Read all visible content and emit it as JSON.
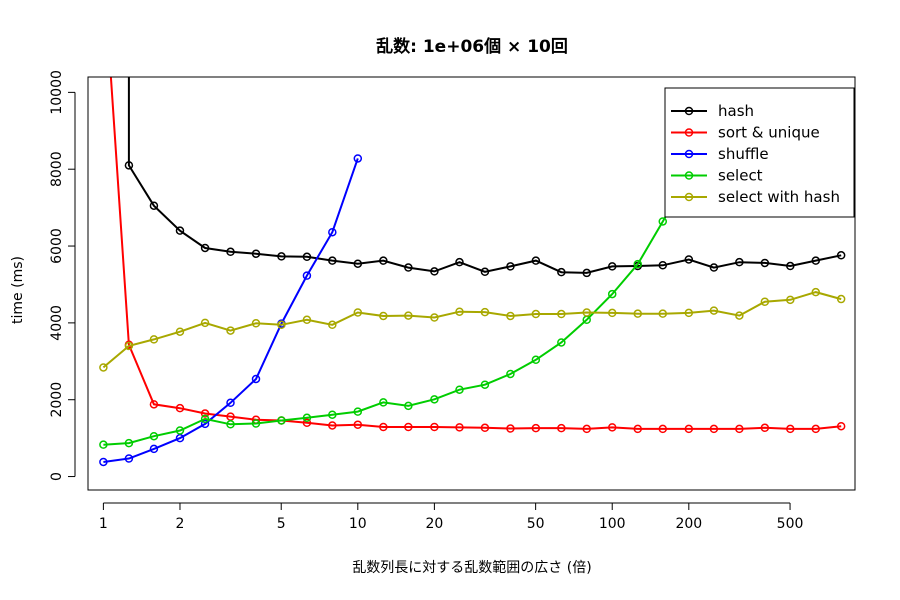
{
  "chart_data": {
    "type": "line",
    "title": "乱数: 1e+06個 × 10回",
    "xlabel": "乱数列長に対する乱数範囲の広さ (倍)",
    "ylabel": "time (ms)",
    "xscale": "log",
    "xlim": [
      0.87,
      900
    ],
    "ylim": [
      -350,
      10400
    ],
    "xticks": [
      1,
      2,
      5,
      10,
      20,
      50,
      100,
      200,
      500
    ],
    "xtick_labels": [
      "1",
      "2",
      "5",
      "10",
      "20",
      "50",
      "100",
      "200",
      "500"
    ],
    "yticks": [
      0,
      2000,
      4000,
      6000,
      8000,
      10000
    ],
    "ytick_labels": [
      "0",
      "2000",
      "4000",
      "6000",
      "8000",
      "10000"
    ],
    "grid": false,
    "legend_position": "top-right",
    "series": [
      {
        "name": "hash",
        "color": "#000000",
        "x": [
          1,
          1.26,
          1.58,
          2,
          2.51,
          3.16,
          3.98,
          5.01,
          6.31,
          7.94,
          10,
          12.6,
          15.8,
          20,
          25.1,
          31.6,
          39.8,
          50.1,
          63.1,
          79.4,
          100,
          126,
          158,
          200,
          251,
          316,
          398,
          501,
          631,
          794
        ],
        "y": [
          null,
          8100,
          7050,
          6400,
          5950,
          5850,
          5800,
          5730,
          5720,
          5620,
          5540,
          5620,
          5440,
          5340,
          5580,
          5330,
          5470,
          5620,
          5320,
          5300,
          5470,
          5480,
          5500,
          5650,
          5440,
          5580,
          5560,
          5480,
          5620,
          5760
        ],
        "start": {
          "x": 1.26,
          "y": 10400
        }
      },
      {
        "name": "sort & unique",
        "color": "#ff0000",
        "x": [
          1.26,
          1.58,
          2,
          2.51,
          3.16,
          3.98,
          5.01,
          6.31,
          7.94,
          10,
          12.6,
          15.8,
          20,
          25.1,
          31.6,
          39.8,
          50.1,
          63.1,
          79.4,
          100,
          126,
          158,
          200,
          251,
          316,
          398,
          501,
          631,
          794
        ],
        "y": [
          3430,
          1880,
          1780,
          1640,
          1560,
          1480,
          1460,
          1400,
          1330,
          1350,
          1290,
          1290,
          1290,
          1280,
          1270,
          1250,
          1260,
          1260,
          1240,
          1280,
          1240,
          1240,
          1240,
          1240,
          1240,
          1270,
          1240,
          1240,
          1310
        ],
        "start": {
          "x": 1.07,
          "y": 10400
        }
      },
      {
        "name": "shuffle",
        "color": "#0000ff",
        "x": [
          1,
          1.26,
          1.58,
          2,
          2.51,
          3.16,
          3.98,
          5.01,
          6.31,
          7.94,
          10
        ],
        "y": [
          380,
          470,
          720,
          1000,
          1370,
          1920,
          2540,
          3980,
          5230,
          6360,
          8280
        ]
      },
      {
        "name": "select",
        "color": "#00cd00",
        "x": [
          1,
          1.26,
          1.58,
          2,
          2.51,
          3.16,
          3.98,
          5.01,
          6.31,
          7.94,
          10,
          12.6,
          15.8,
          20,
          25.1,
          31.6,
          39.8,
          50.1,
          63.1,
          79.4,
          100,
          126,
          158
        ],
        "y": [
          830,
          870,
          1050,
          1200,
          1500,
          1360,
          1380,
          1460,
          1530,
          1610,
          1690,
          1930,
          1840,
          2010,
          2260,
          2390,
          2670,
          3040,
          3490,
          4080,
          4750,
          5530,
          6640
        ],
        "end": {
          "x": 180,
          "y": 7300
        }
      },
      {
        "name": "select with hash",
        "color": "#a8a800",
        "x": [
          1,
          1.26,
          1.58,
          2,
          2.51,
          3.16,
          3.98,
          5.01,
          6.31,
          7.94,
          10,
          12.6,
          15.8,
          20,
          25.1,
          31.6,
          39.8,
          50.1,
          63.1,
          79.4,
          100,
          126,
          158,
          200,
          251,
          316,
          398,
          501,
          631,
          794
        ],
        "y": [
          2840,
          3400,
          3570,
          3770,
          4000,
          3800,
          3990,
          3950,
          4080,
          3950,
          4270,
          4180,
          4190,
          4140,
          4290,
          4280,
          4180,
          4230,
          4230,
          4270,
          4260,
          4240,
          4240,
          4260,
          4320,
          4190,
          4550,
          4600,
          4800,
          4620
        ]
      }
    ]
  }
}
